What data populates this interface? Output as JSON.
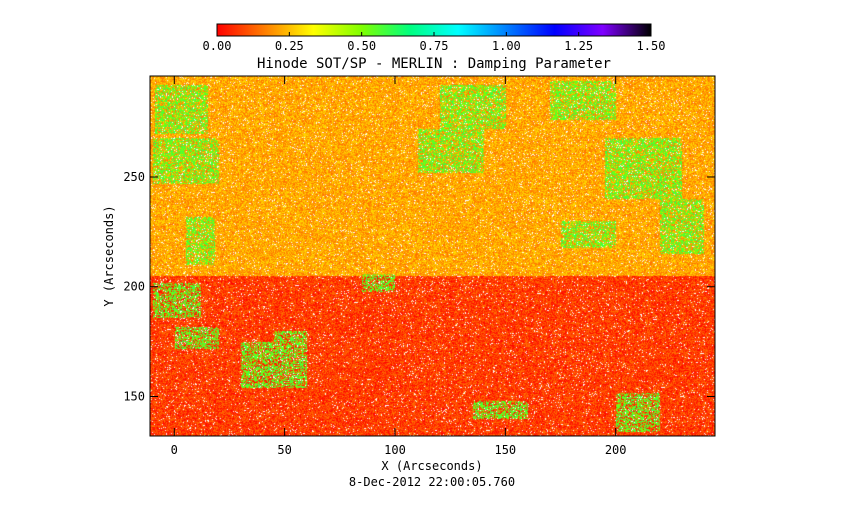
{
  "chart_data": {
    "type": "heatmap",
    "title": "Hinode SOT/SP - MERLIN : Damping Parameter",
    "xlabel": "X (Arcseconds)",
    "ylabel": "Y (Arcseconds)",
    "footer": "8-Dec-2012 22:00:05.760",
    "xlim": [
      -11,
      245
    ],
    "ylim": [
      132,
      296
    ],
    "x_ticks": [
      0,
      50,
      100,
      150,
      200
    ],
    "x_tick_labels": [
      "0",
      "50",
      "100",
      "150",
      "200"
    ],
    "y_ticks": [
      150,
      200,
      250
    ],
    "y_tick_labels": [
      "150",
      "200",
      "250"
    ],
    "colorbar": {
      "range": [
        0.0,
        1.5
      ],
      "ticks": [
        0.0,
        0.25,
        0.5,
        0.75,
        1.0,
        1.25,
        1.5
      ],
      "tick_labels": [
        "0.00",
        "0.25",
        "0.50",
        "0.75",
        "1.00",
        "1.25",
        "1.50"
      ],
      "colors": [
        "#ff0000",
        "#ff7f00",
        "#ffff00",
        "#7fff00",
        "#00ff7f",
        "#00ffff",
        "#007fff",
        "#0000ff",
        "#7f00ff",
        "#000000"
      ]
    },
    "background_level": 0.08,
    "upper_region_level": 0.22,
    "upper_region_ymin": 205,
    "noise_color": "#ffffff",
    "enhanced_regions_level": 0.55,
    "enhanced_regions": [
      {
        "x": [
          -9,
          15
        ],
        "y": [
          270,
          292
        ]
      },
      {
        "x": [
          -10,
          20
        ],
        "y": [
          247,
          268
        ]
      },
      {
        "x": [
          5,
          18
        ],
        "y": [
          210,
          232
        ]
      },
      {
        "x": [
          -10,
          12
        ],
        "y": [
          186,
          202
        ]
      },
      {
        "x": [
          0,
          20
        ],
        "y": [
          172,
          182
        ]
      },
      {
        "x": [
          30,
          60
        ],
        "y": [
          154,
          175
        ]
      },
      {
        "x": [
          45,
          60
        ],
        "y": [
          165,
          180
        ]
      },
      {
        "x": [
          110,
          140
        ],
        "y": [
          252,
          272
        ]
      },
      {
        "x": [
          120,
          150
        ],
        "y": [
          272,
          292
        ]
      },
      {
        "x": [
          85,
          100
        ],
        "y": [
          198,
          206
        ]
      },
      {
        "x": [
          170,
          200
        ],
        "y": [
          276,
          294
        ]
      },
      {
        "x": [
          195,
          230
        ],
        "y": [
          240,
          268
        ]
      },
      {
        "x": [
          220,
          240
        ],
        "y": [
          215,
          240
        ]
      },
      {
        "x": [
          175,
          200
        ],
        "y": [
          218,
          230
        ]
      },
      {
        "x": [
          200,
          220
        ],
        "y": [
          134,
          152
        ]
      },
      {
        "x": [
          135,
          160
        ],
        "y": [
          140,
          148
        ]
      }
    ]
  }
}
